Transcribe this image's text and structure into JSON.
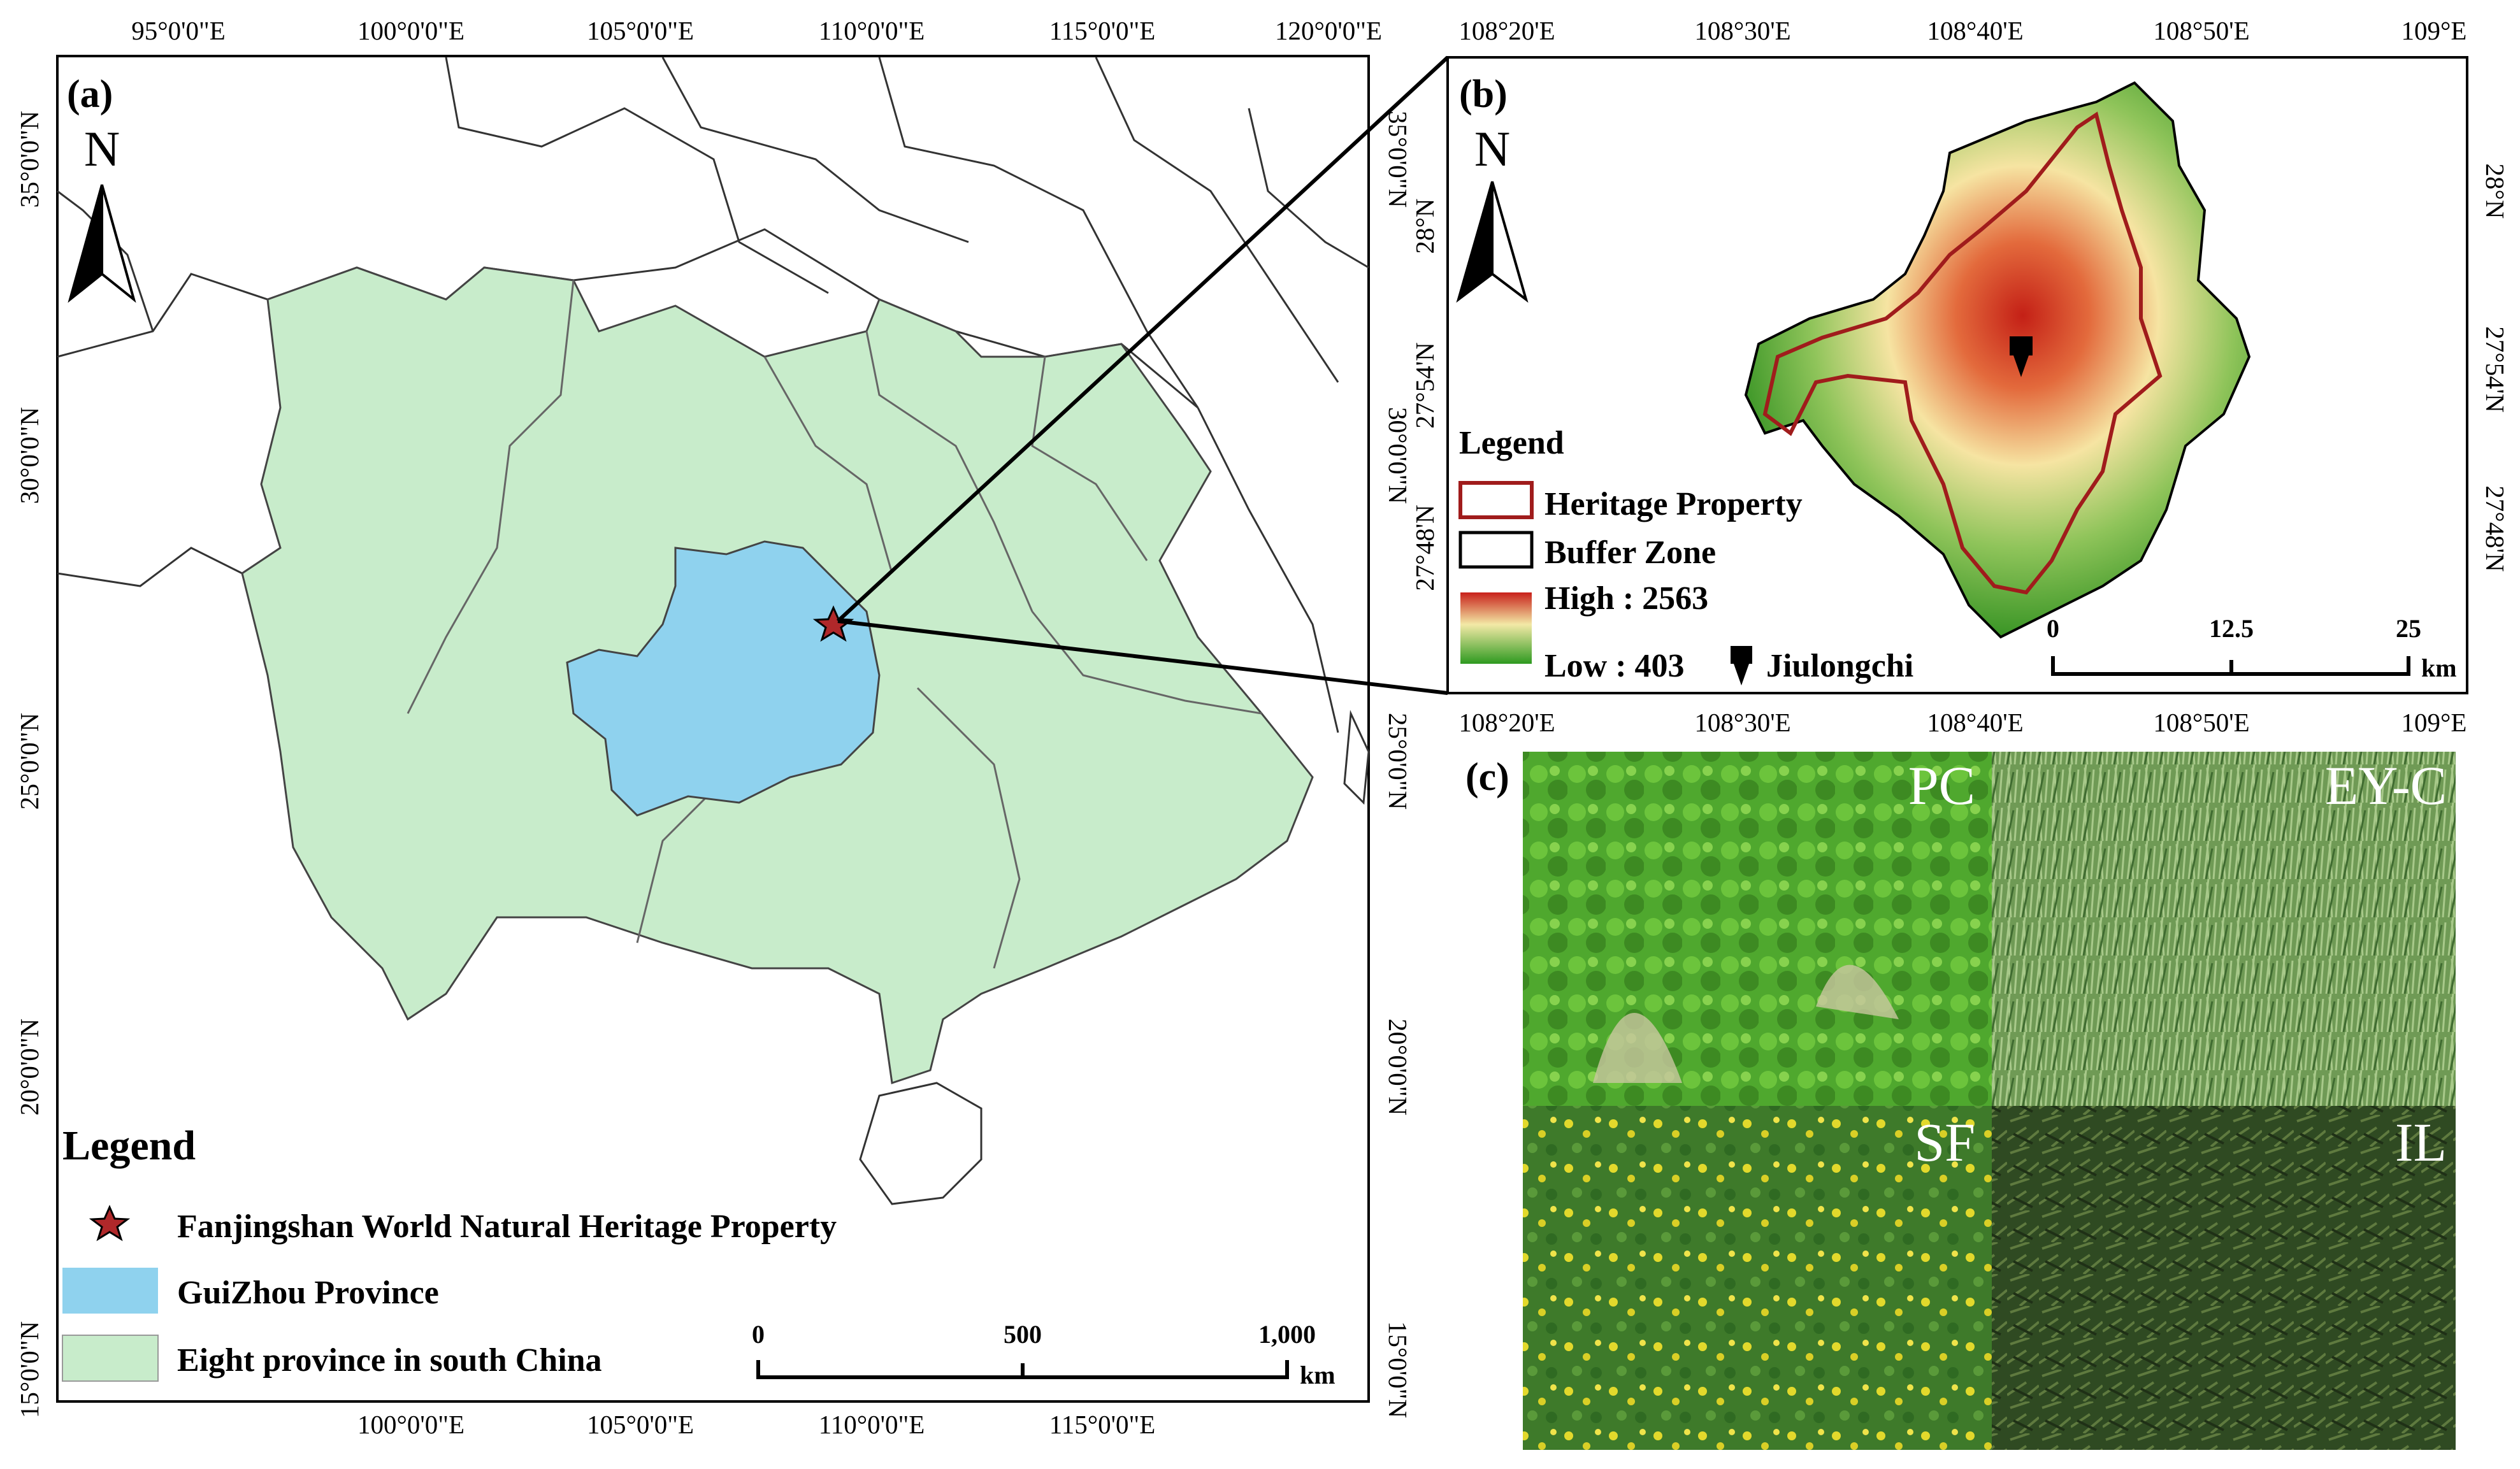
{
  "panel_a": {
    "label": "(a)",
    "lon_ticks": [
      "95°0'0\"E",
      "100°0'0\"E",
      "105°0'0\"E",
      "110°0'0\"E",
      "115°0'0\"E",
      "120°0'0\"E"
    ],
    "lon_ticks_bottom": [
      "100°0'0\"E",
      "105°0'0\"E",
      "110°0'0\"E",
      "115°0'0\"E"
    ],
    "lat_ticks_left": [
      "35°0'0\"N",
      "30°0'0\"N",
      "25°0'0\"N",
      "20°0'0\"N",
      "15°0'0\"N"
    ],
    "lat_ticks_right": [
      "35°0'0\"N",
      "30°0'0\"N",
      "25°0'0\"N",
      "20°0'0\"N",
      "15°0'0\"N"
    ],
    "north": "N",
    "legend": {
      "title": "Legend",
      "items": [
        {
          "label": "Fanjingshan World Natural Heritage Property",
          "symbol": "star",
          "color": "#b0282a"
        },
        {
          "label": "GuiZhou Province",
          "symbol": "patch",
          "color": "#8fd2ee"
        },
        {
          "label": "Eight province in south China",
          "symbol": "patch",
          "color": "#c8eccb"
        }
      ]
    },
    "scale": {
      "ticks": [
        "0",
        "500",
        "1,000"
      ],
      "unit": "km"
    }
  },
  "panel_b": {
    "label": "(b)",
    "lon_ticks": [
      "108°20'E",
      "108°30'E",
      "108°40'E",
      "108°50'E",
      "109°E"
    ],
    "lat_ticks_left": [
      "28°N",
      "27°54'N",
      "27°48'N"
    ],
    "lat_ticks_right": [
      "28°N",
      "27°54'N",
      "27°48'N"
    ],
    "north": "N",
    "legend": {
      "title": "Legend",
      "heritage": "Heritage Property",
      "buffer": "Buffer Zone",
      "high": "High : 2563",
      "low": "Low : 403",
      "jiulongchi": "Jiulongchi"
    },
    "scale": {
      "ticks": [
        "0",
        "12.5",
        "25"
      ],
      "unit": "km"
    }
  },
  "panel_c": {
    "label": "(c)",
    "photos": [
      "PC",
      "EY-C",
      "SF",
      "IL"
    ]
  },
  "colors": {
    "guizhou": "#8fd2ee",
    "south_china": "#c8eccb",
    "heritage_outline": "#a01c1c",
    "dem_high": "#c8201a",
    "dem_low": "#2e8b1e"
  }
}
